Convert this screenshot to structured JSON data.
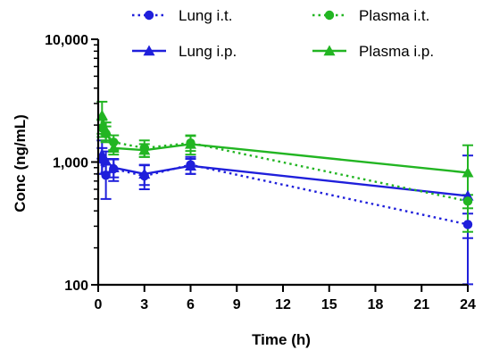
{
  "chart_data": {
    "type": "line",
    "xlabel": "Time (h)",
    "ylabel": "Conc (ng/mL)",
    "xlim": [
      0,
      24
    ],
    "ylim": [
      100,
      10000
    ],
    "yscale": "log",
    "xticks": [
      0,
      3,
      6,
      9,
      12,
      15,
      18,
      21,
      24
    ],
    "xtick_labels": [
      "0",
      "3",
      "6",
      "9",
      "12",
      "15",
      "18",
      "21",
      "24"
    ],
    "yticks": [
      100,
      1000,
      10000
    ],
    "ytick_labels": [
      "100",
      "1,000",
      "10,000"
    ],
    "legend_position": "top",
    "series": [
      {
        "name": "Lung i.t.",
        "color": "#1f1fdb",
        "marker": "circle",
        "line": "dotted",
        "points": [
          {
            "x": 0.25,
            "y": 1050,
            "err": 250
          },
          {
            "x": 0.5,
            "y": 780,
            "err": 280
          },
          {
            "x": 1,
            "y": 880,
            "err": 180
          },
          {
            "x": 3,
            "y": 770,
            "err": 170
          },
          {
            "x": 6,
            "y": 950,
            "err": 150
          },
          {
            "x": 24,
            "y": 310,
            "err": 70
          }
        ]
      },
      {
        "name": "Lung i.p.",
        "color": "#1f1fdb",
        "marker": "triangle",
        "line": "solid",
        "points": [
          {
            "x": 0.25,
            "y": 1150,
            "err": 350
          },
          {
            "x": 0.5,
            "y": 1020,
            "err": 200
          },
          {
            "x": 1,
            "y": 900,
            "err": 150
          },
          {
            "x": 3,
            "y": 800,
            "err": 150
          },
          {
            "x": 6,
            "y": 930,
            "err": 130
          },
          {
            "x": 24,
            "y": 530,
            "err": 600
          }
        ]
      },
      {
        "name": "Plasma i.t.",
        "color": "#22b522",
        "marker": "circle",
        "line": "dotted",
        "points": [
          {
            "x": 0.25,
            "y": 1900,
            "err": 300
          },
          {
            "x": 0.5,
            "y": 1700,
            "err": 250
          },
          {
            "x": 1,
            "y": 1450,
            "err": 200
          },
          {
            "x": 3,
            "y": 1300,
            "err": 200
          },
          {
            "x": 6,
            "y": 1430,
            "err": 200
          },
          {
            "x": 24,
            "y": 480,
            "err": 60
          }
        ]
      },
      {
        "name": "Plasma i.p.",
        "color": "#22b522",
        "marker": "triangle",
        "line": "solid",
        "points": [
          {
            "x": 0.25,
            "y": 2400,
            "err": 700
          },
          {
            "x": 0.5,
            "y": 1800,
            "err": 300
          },
          {
            "x": 1,
            "y": 1300,
            "err": 150
          },
          {
            "x": 3,
            "y": 1250,
            "err": 150
          },
          {
            "x": 6,
            "y": 1400,
            "err": 250
          },
          {
            "x": 24,
            "y": 820,
            "err": 550
          }
        ]
      }
    ]
  }
}
